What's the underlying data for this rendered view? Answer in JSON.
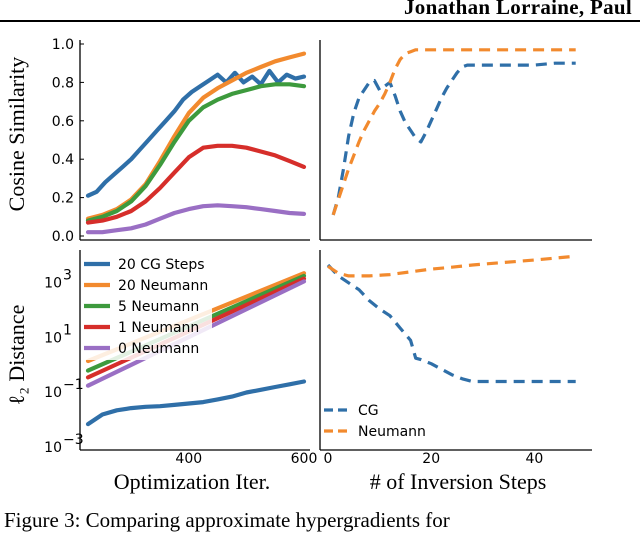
{
  "header": {
    "authors": "Jonathan Lorraine, Paul"
  },
  "caption": "Figure 3:   Comparing approximate hypergradients for",
  "colors": {
    "blue": "#2f6fa8",
    "orange": "#f28a2e",
    "green": "#3d9a3d",
    "red": "#d62e2a",
    "purple": "#9a6fc4"
  },
  "chart_data": [
    {
      "panel": "top-left",
      "type": "line",
      "xlabel": "",
      "ylabel": "Cosine Similarity",
      "xlim": [
        225,
        600
      ],
      "ylim": [
        0.0,
        1.0
      ],
      "yticks": [
        0.0,
        0.2,
        0.4,
        0.6,
        0.8,
        1.0
      ],
      "ytick_labels": [
        "0.0",
        "0.2",
        "0.4",
        "0.6",
        "0.8",
        "1.0"
      ],
      "series": [
        {
          "name": "20 CG Steps",
          "color": "#2f6fa8",
          "x": [
            225,
            240,
            255,
            270,
            285,
            300,
            315,
            330,
            345,
            360,
            375,
            390,
            405,
            420,
            435,
            450,
            465,
            480,
            495,
            510,
            525,
            540,
            555,
            570,
            585,
            600
          ],
          "y": [
            0.21,
            0.23,
            0.28,
            0.32,
            0.36,
            0.4,
            0.45,
            0.5,
            0.55,
            0.6,
            0.65,
            0.71,
            0.75,
            0.78,
            0.81,
            0.84,
            0.8,
            0.85,
            0.8,
            0.83,
            0.79,
            0.86,
            0.8,
            0.84,
            0.82,
            0.83
          ]
        },
        {
          "name": "20 Neumann",
          "color": "#f28a2e",
          "x": [
            225,
            250,
            275,
            300,
            325,
            350,
            375,
            400,
            425,
            450,
            475,
            500,
            525,
            550,
            575,
            600
          ],
          "y": [
            0.09,
            0.11,
            0.14,
            0.19,
            0.27,
            0.39,
            0.52,
            0.64,
            0.72,
            0.77,
            0.81,
            0.85,
            0.88,
            0.91,
            0.93,
            0.95
          ]
        },
        {
          "name": "5 Neumann",
          "color": "#3d9a3d",
          "x": [
            225,
            250,
            275,
            300,
            325,
            350,
            375,
            400,
            425,
            450,
            475,
            500,
            525,
            550,
            575,
            600
          ],
          "y": [
            0.08,
            0.1,
            0.13,
            0.18,
            0.26,
            0.37,
            0.49,
            0.6,
            0.67,
            0.71,
            0.74,
            0.76,
            0.78,
            0.79,
            0.79,
            0.78
          ]
        },
        {
          "name": "1 Neumann",
          "color": "#d62e2a",
          "x": [
            225,
            250,
            275,
            300,
            325,
            350,
            375,
            400,
            425,
            450,
            475,
            500,
            525,
            550,
            575,
            600
          ],
          "y": [
            0.07,
            0.08,
            0.1,
            0.13,
            0.18,
            0.25,
            0.33,
            0.41,
            0.46,
            0.47,
            0.47,
            0.46,
            0.44,
            0.42,
            0.39,
            0.36
          ]
        },
        {
          "name": "0 Neumann",
          "color": "#9a6fc4",
          "x": [
            225,
            250,
            275,
            300,
            325,
            350,
            375,
            400,
            425,
            450,
            475,
            500,
            525,
            550,
            575,
            600
          ],
          "y": [
            0.02,
            0.02,
            0.03,
            0.04,
            0.06,
            0.09,
            0.12,
            0.14,
            0.155,
            0.16,
            0.155,
            0.15,
            0.14,
            0.13,
            0.12,
            0.115
          ]
        }
      ]
    },
    {
      "panel": "top-right",
      "type": "line",
      "xlabel": "",
      "ylabel": "",
      "xlim": [
        0,
        50
      ],
      "ylim": [
        0.0,
        1.0
      ],
      "series": [
        {
          "name": "CG",
          "color": "#2f6fa8",
          "x": [
            1,
            2,
            3,
            4,
            5,
            6,
            7,
            8,
            9,
            10,
            11,
            12,
            13,
            14,
            15,
            16,
            17,
            18,
            19,
            20,
            21,
            22,
            23,
            24,
            25,
            26,
            27,
            28,
            29,
            30,
            32,
            34,
            36,
            38,
            40,
            44,
            48
          ],
          "y": [
            0.11,
            0.2,
            0.35,
            0.52,
            0.64,
            0.72,
            0.76,
            0.8,
            0.81,
            0.76,
            0.78,
            0.8,
            0.73,
            0.65,
            0.59,
            0.55,
            0.51,
            0.49,
            0.54,
            0.6,
            0.66,
            0.72,
            0.77,
            0.81,
            0.85,
            0.88,
            0.89,
            0.89,
            0.89,
            0.89,
            0.89,
            0.89,
            0.89,
            0.89,
            0.89,
            0.9,
            0.9
          ]
        },
        {
          "name": "Neumann",
          "color": "#f28a2e",
          "x": [
            1,
            2,
            3,
            4,
            5,
            6,
            7,
            8,
            9,
            10,
            11,
            12,
            13,
            14,
            15,
            16,
            17,
            18,
            20,
            24,
            28,
            32,
            36,
            40,
            44,
            48
          ],
          "y": [
            0.11,
            0.19,
            0.27,
            0.35,
            0.42,
            0.49,
            0.55,
            0.6,
            0.65,
            0.69,
            0.74,
            0.8,
            0.87,
            0.92,
            0.95,
            0.96,
            0.97,
            0.97,
            0.97,
            0.97,
            0.97,
            0.97,
            0.97,
            0.97,
            0.97,
            0.97
          ]
        }
      ]
    },
    {
      "panel": "bottom-left",
      "type": "line",
      "xlabel": "Optimization Iter.",
      "ylabel": "ℓ₂ Distance",
      "xlim": [
        225,
        600
      ],
      "yscale": "log",
      "ylim_log10": [
        -3,
        4
      ],
      "xticks": [
        400,
        600
      ],
      "xtick_labels": [
        "400",
        "600"
      ],
      "yticks_log10": [
        -3,
        -1,
        1,
        3
      ],
      "ytick_labels": [
        "10",
        "10",
        "10",
        "10"
      ],
      "ytick_exponents": [
        "−3",
        "−1",
        "1",
        "3"
      ],
      "legend": "top-left",
      "series": [
        {
          "name": "20 CG Steps",
          "color": "#2f6fa8",
          "x": [
            225,
            250,
            275,
            300,
            325,
            350,
            375,
            400,
            425,
            450,
            475,
            500,
            525,
            550,
            575,
            600
          ],
          "log10y": [
            -2.2,
            -1.85,
            -1.7,
            -1.62,
            -1.57,
            -1.55,
            -1.5,
            -1.45,
            -1.4,
            -1.3,
            -1.2,
            -1.05,
            -0.95,
            -0.85,
            -0.75,
            -0.65
          ]
        },
        {
          "name": "20 Neumann",
          "color": "#f28a2e",
          "x": [
            225,
            600
          ],
          "log10y": [
            0.1,
            3.3
          ]
        },
        {
          "name": "5 Neumann",
          "color": "#3d9a3d",
          "x": [
            225,
            600
          ],
          "log10y": [
            -0.25,
            3.2
          ]
        },
        {
          "name": "1 Neumann",
          "color": "#d62e2a",
          "x": [
            225,
            600
          ],
          "log10y": [
            -0.5,
            3.1
          ]
        },
        {
          "name": "0 Neumann",
          "color": "#9a6fc4",
          "x": [
            225,
            600
          ],
          "log10y": [
            -0.8,
            3.0
          ]
        }
      ]
    },
    {
      "panel": "bottom-right",
      "type": "line",
      "xlabel": "# of Inversion Steps",
      "ylabel": "",
      "xlim": [
        0,
        50
      ],
      "yscale": "log",
      "ylim_log10": [
        -3,
        4
      ],
      "xticks": [
        0,
        20,
        40
      ],
      "xtick_labels": [
        "0",
        "20",
        "40"
      ],
      "legend": "bottom-left",
      "series": [
        {
          "name": "CG",
          "color": "#2f6fa8",
          "x": [
            0,
            2,
            4,
            6,
            8,
            10,
            12,
            14,
            16,
            17,
            18,
            20,
            22,
            24,
            26,
            28,
            30,
            34,
            40,
            48
          ],
          "log10y": [
            3.6,
            3.2,
            2.95,
            2.7,
            2.3,
            2.0,
            1.75,
            1.3,
            0.85,
            0.2,
            0.15,
            0.0,
            -0.2,
            -0.4,
            -0.55,
            -0.65,
            -0.65,
            -0.65,
            -0.65,
            -0.65
          ]
        },
        {
          "name": "Neumann",
          "color": "#f28a2e",
          "x": [
            0,
            2,
            4,
            8,
            12,
            16,
            20,
            24,
            28,
            32,
            36,
            40,
            44,
            48
          ],
          "log10y": [
            3.55,
            3.3,
            3.2,
            3.2,
            3.25,
            3.35,
            3.45,
            3.52,
            3.6,
            3.66,
            3.72,
            3.78,
            3.85,
            3.92
          ]
        }
      ]
    }
  ]
}
